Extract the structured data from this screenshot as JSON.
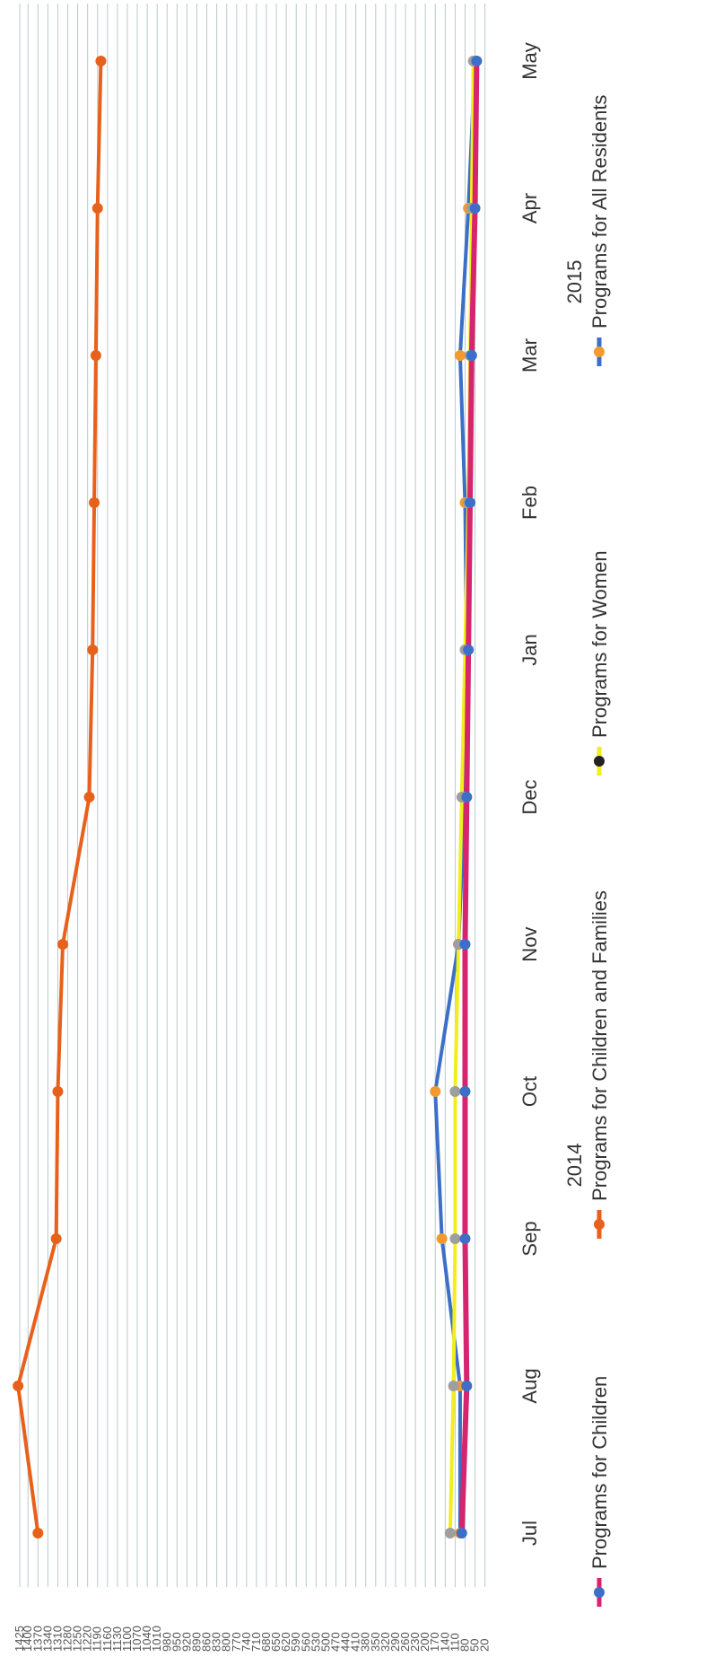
{
  "chart_data": {
    "type": "line",
    "title": "",
    "xlabel": "",
    "ylabel": "",
    "categories": [
      "Jul",
      "Aug",
      "Sep",
      "Oct",
      "Nov",
      "Dec",
      "Jan",
      "Feb",
      "Mar",
      "Apr",
      "May"
    ],
    "year_labels": [
      {
        "text": "2014",
        "between": [
          2,
          3
        ]
      },
      {
        "text": "2015",
        "between": [
          8,
          9
        ]
      }
    ],
    "y_ticks": [
      20,
      50,
      80,
      110,
      140,
      170,
      200,
      230,
      260,
      290,
      320,
      350,
      380,
      410,
      440,
      470,
      500,
      530,
      560,
      590,
      620,
      650,
      680,
      710,
      740,
      770,
      800,
      830,
      860,
      890,
      920,
      950,
      980,
      1010,
      1040,
      1070,
      1100,
      1130,
      1160,
      1190,
      1220,
      1250,
      1280,
      1310,
      1340,
      1370,
      1400,
      1425
    ],
    "ylim": [
      0,
      1425
    ],
    "grid": true,
    "series": [
      {
        "name": "Programs for Children",
        "color": "#d6246e",
        "marker_color": "#3c6fc7",
        "values": [
          90,
          75,
          80,
          80,
          80,
          75,
          70,
          65,
          60,
          50,
          45
        ]
      },
      {
        "name": "Programs for Children and Families",
        "color": "#e8611c",
        "marker_color": "#e8611c",
        "values": [
          1370,
          1430,
          1315,
          1310,
          1295,
          1215,
          1205,
          1200,
          1195,
          1190,
          1180
        ]
      },
      {
        "name": "Programs for Women",
        "color": "#f2ee1c",
        "marker_color": "#9e9e9e",
        "values": [
          125,
          115,
          110,
          110,
          100,
          90,
          80,
          70,
          65,
          60,
          55
        ]
      },
      {
        "name": "Programs for All Residents",
        "color": "#3c6fc7",
        "marker_color": "#f29a2e",
        "values": [
          95,
          95,
          150,
          170,
          100,
          80,
          75,
          80,
          95,
          70,
          50
        ]
      }
    ],
    "legend_position": "bottom"
  }
}
